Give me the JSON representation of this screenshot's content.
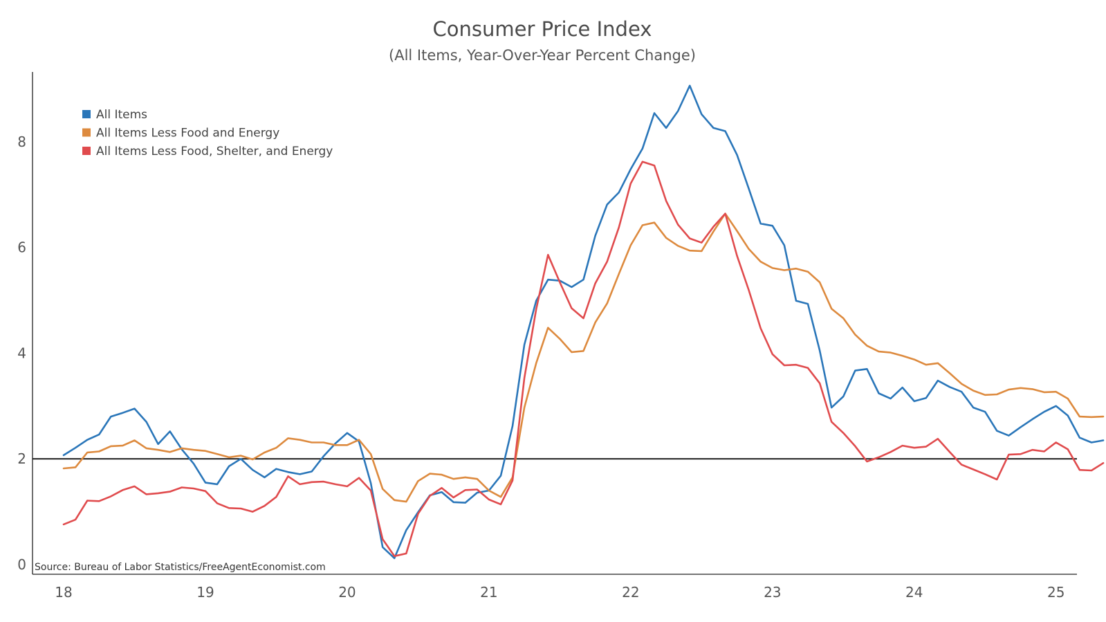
{
  "chart_data": {
    "type": "line",
    "title": "Consumer Price Index",
    "subtitle": "(All Items, Year-Over-Year Percent Change)",
    "xlabel": "",
    "ylabel": "",
    "x_start": "2018-01",
    "x_frequency": "monthly",
    "xlim": [
      "2017-10",
      "2025-03"
    ],
    "ylim": [
      0,
      9.3
    ],
    "x_ticks": [
      {
        "label": "18",
        "date": "2018-01"
      },
      {
        "label": "19",
        "date": "2019-01"
      },
      {
        "label": "20",
        "date": "2020-01"
      },
      {
        "label": "21",
        "date": "2021-01"
      },
      {
        "label": "22",
        "date": "2022-01"
      },
      {
        "label": "23",
        "date": "2023-01"
      },
      {
        "label": "24",
        "date": "2024-01"
      },
      {
        "label": "25",
        "date": "2025-01"
      }
    ],
    "y_ticks": [
      {
        "label": "0",
        "value": 0
      },
      {
        "label": "2",
        "value": 2
      },
      {
        "label": "4",
        "value": 4
      },
      {
        "label": "6",
        "value": 6
      },
      {
        "label": "8",
        "value": 8
      }
    ],
    "reference_line": 2,
    "grid": false,
    "legend_position": "top-left",
    "annotation": "Source: Bureau of Labor Statistics/FreeAgentEconomist.com",
    "series": [
      {
        "name": "All Items",
        "color": "#2a76b9",
        "values": [
          2.07,
          2.21,
          2.36,
          2.46,
          2.8,
          2.87,
          2.95,
          2.7,
          2.28,
          2.52,
          2.18,
          1.91,
          1.55,
          1.52,
          1.86,
          2.0,
          1.79,
          1.65,
          1.81,
          1.75,
          1.71,
          1.76,
          2.05,
          2.29,
          2.49,
          2.33,
          1.54,
          0.33,
          0.12,
          0.65,
          0.99,
          1.31,
          1.37,
          1.18,
          1.17,
          1.36,
          1.4,
          1.68,
          2.62,
          4.16,
          4.99,
          5.39,
          5.37,
          5.25,
          5.39,
          6.22,
          6.81,
          7.04,
          7.48,
          7.87,
          8.54,
          8.26,
          8.58,
          9.06,
          8.52,
          8.26,
          8.2,
          7.75,
          7.11,
          6.45,
          6.41,
          6.04,
          4.99,
          4.93,
          4.05,
          2.97,
          3.18,
          3.67,
          3.7,
          3.24,
          3.14,
          3.35,
          3.09,
          3.15,
          3.48,
          3.36,
          3.27,
          2.97,
          2.89,
          2.53,
          2.44,
          2.6,
          2.75,
          2.89,
          3.0,
          2.82,
          2.4,
          2.31,
          2.35
        ]
      },
      {
        "name": "All Items Less Food and Energy",
        "color": "#dd8a3e",
        "values": [
          1.82,
          1.84,
          2.12,
          2.14,
          2.24,
          2.25,
          2.35,
          2.2,
          2.17,
          2.13,
          2.2,
          2.17,
          2.15,
          2.09,
          2.03,
          2.06,
          1.99,
          2.12,
          2.21,
          2.39,
          2.36,
          2.31,
          2.31,
          2.26,
          2.26,
          2.36,
          2.09,
          1.43,
          1.22,
          1.19,
          1.58,
          1.72,
          1.7,
          1.62,
          1.65,
          1.62,
          1.4,
          1.28,
          1.65,
          2.97,
          3.81,
          4.48,
          4.27,
          4.02,
          4.04,
          4.58,
          4.94,
          5.5,
          6.04,
          6.42,
          6.47,
          6.18,
          6.03,
          5.94,
          5.93,
          6.3,
          6.64,
          6.31,
          5.97,
          5.73,
          5.61,
          5.57,
          5.6,
          5.54,
          5.34,
          4.84,
          4.66,
          4.35,
          4.14,
          4.03,
          4.01,
          3.95,
          3.88,
          3.78,
          3.81,
          3.62,
          3.42,
          3.29,
          3.21,
          3.22,
          3.31,
          3.34,
          3.32,
          3.26,
          3.27,
          3.14,
          2.8,
          2.79,
          2.8
        ]
      },
      {
        "name": "All Items Less Food, Shelter, and Energy",
        "color": "#e04b4d",
        "values": [
          0.76,
          0.85,
          1.21,
          1.2,
          1.29,
          1.41,
          1.48,
          1.33,
          1.35,
          1.38,
          1.46,
          1.44,
          1.39,
          1.16,
          1.07,
          1.06,
          1.0,
          1.11,
          1.28,
          1.67,
          1.52,
          1.56,
          1.57,
          1.52,
          1.48,
          1.64,
          1.4,
          0.48,
          0.16,
          0.21,
          0.96,
          1.3,
          1.45,
          1.27,
          1.41,
          1.42,
          1.23,
          1.14,
          1.59,
          3.53,
          4.83,
          5.86,
          5.34,
          4.85,
          4.66,
          5.32,
          5.73,
          6.38,
          7.21,
          7.62,
          7.55,
          6.88,
          6.43,
          6.17,
          6.09,
          6.39,
          6.64,
          5.84,
          5.19,
          4.47,
          3.98,
          3.77,
          3.78,
          3.72,
          3.43,
          2.7,
          2.49,
          2.24,
          1.95,
          2.03,
          2.13,
          2.25,
          2.21,
          2.23,
          2.38,
          2.13,
          1.89,
          1.8,
          1.71,
          1.61,
          2.08,
          2.09,
          2.17,
          2.14,
          2.31,
          2.18,
          1.79,
          1.78,
          1.92
        ]
      }
    ]
  }
}
